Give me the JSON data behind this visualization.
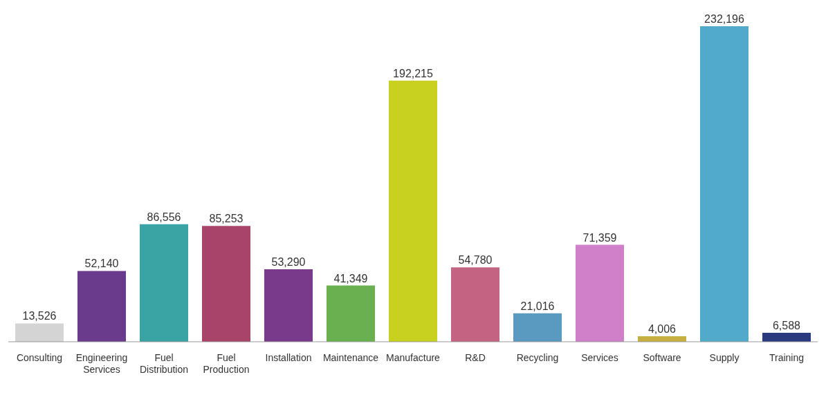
{
  "chart_data": {
    "type": "bar",
    "categories": [
      "Consulting",
      "Engineering Services",
      "Fuel Distribution",
      "Fuel Production",
      "Installation",
      "Maintenance",
      "Manufacture",
      "R&D",
      "Recycling",
      "Services",
      "Software",
      "Supply",
      "Training"
    ],
    "values": [
      13526,
      52140,
      86556,
      85253,
      53290,
      41349,
      192215,
      54780,
      21016,
      71359,
      4006,
      232196,
      6588
    ],
    "colors": [
      "#d4d4d4",
      "#6a3a8c",
      "#3aa3a3",
      "#a8446a",
      "#7a3a8c",
      "#6ab050",
      "#c8d020",
      "#c46482",
      "#5a9ac0",
      "#d080c8",
      "#c8b040",
      "#52aacb",
      "#2a3a80"
    ],
    "value_labels": [
      "13,526",
      "52,140",
      "86,556",
      "85,253",
      "53,290",
      "41,349",
      "192,215",
      "54,780",
      "21,016",
      "71,359",
      "4,006",
      "232,196",
      "6,588"
    ],
    "tick_labels": "x",
    "grid": false,
    "legend": false
  }
}
